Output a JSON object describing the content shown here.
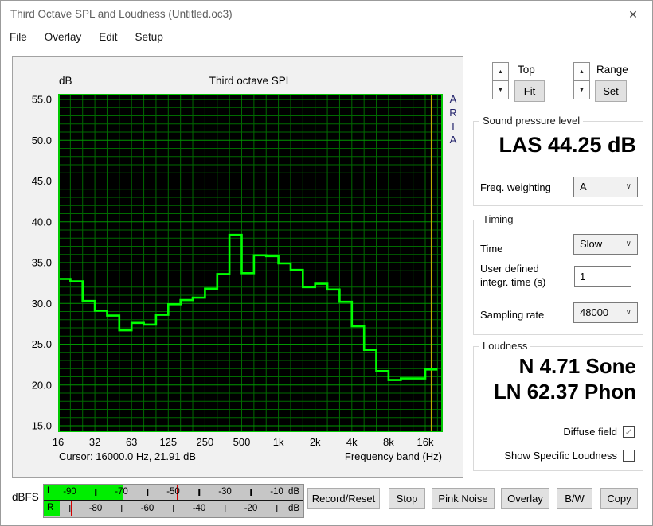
{
  "window": {
    "title": "Third Octave SPL and Loudness (Untitled.oc3)"
  },
  "icons": {
    "close": "✕",
    "spin_up": "▲",
    "spin_down": "▼",
    "chevron_down": "∨",
    "check": "✓"
  },
  "menu": [
    "File",
    "Overlay",
    "Edit",
    "Setup"
  ],
  "scale_controls": {
    "top_label": "Top",
    "fit_button": "Fit",
    "range_label": "Range",
    "set_button": "Set"
  },
  "chart": {
    "unit_label": "dB",
    "title": "Third octave SPL",
    "watermark": "ARTA",
    "cursor_status": "Cursor: 16000.0 Hz, 21.91 dB",
    "xlabel": "Frequency band (Hz)"
  },
  "chart_data": {
    "type": "step-line",
    "title": "Third octave SPL",
    "ylabel": "dB",
    "xlabel": "Frequency band (Hz)",
    "ylim": [
      15,
      55
    ],
    "grid": true,
    "y_tick_labels": [
      "55.0",
      "50.0",
      "45.0",
      "40.0",
      "35.0",
      "30.0",
      "25.0",
      "20.0",
      "15.0"
    ],
    "x_tick_labels": [
      "16",
      "32",
      "63",
      "125",
      "250",
      "500",
      "1k",
      "2k",
      "4k",
      "8k",
      "16k"
    ],
    "categories": [
      "16",
      "20",
      "25",
      "31.5",
      "40",
      "50",
      "63",
      "80",
      "100",
      "125",
      "160",
      "200",
      "250",
      "315",
      "400",
      "500",
      "630",
      "800",
      "1000",
      "1250",
      "1600",
      "2000",
      "2500",
      "3150",
      "4000",
      "5000",
      "6300",
      "8000",
      "10000",
      "12500",
      "16000"
    ],
    "values": [
      33.0,
      32.7,
      30.3,
      29.1,
      28.5,
      26.7,
      27.6,
      27.4,
      28.6,
      29.9,
      30.4,
      30.7,
      31.8,
      33.6,
      38.4,
      33.7,
      35.9,
      35.8,
      34.9,
      34.1,
      32.0,
      32.4,
      31.7,
      30.2,
      27.2,
      24.3,
      21.7,
      20.6,
      20.8,
      20.8,
      21.9
    ],
    "cursor": {
      "freq_hz": 16000.0,
      "level_db": 21.91,
      "band_index": 30
    },
    "colors": {
      "background": "#000000",
      "grid_minor": "#006a00",
      "grid_major": "#009600",
      "border": "#00c800",
      "line": "#00ff00",
      "cursor_line": "#c0ae00"
    }
  },
  "spl_group": {
    "title": "Sound pressure level",
    "value": "LAS 44.25 dB",
    "freq_weighting_label": "Freq. weighting",
    "freq_weighting_value": "A"
  },
  "timing_group": {
    "title": "Timing",
    "time_label": "Time",
    "time_value": "Slow",
    "integr_label": "User defined\nintegr. time (s)",
    "integr_value": "1",
    "sampling_label": "Sampling rate",
    "sampling_value": "48000"
  },
  "loudness_group": {
    "title": "Loudness",
    "sone_value": "N 4.71 Sone",
    "phon_value": "LN 62.37 Phon",
    "diffuse_field_label": "Diffuse field",
    "diffuse_field_checked": true,
    "show_specific_label": "Show Specific Loudness",
    "show_specific_checked": false
  },
  "meter": {
    "label": "dBFS",
    "unit": "dB",
    "scale": {
      "min_db": -100,
      "max_db": 0
    },
    "rows": [
      {
        "channel": "L",
        "level_db": -69.5,
        "peak_db": -48.5,
        "number_labels": [
          -90,
          -70,
          -50,
          -30,
          -10
        ],
        "tick_marks": [
          -80,
          -60,
          -40,
          -20
        ]
      },
      {
        "channel": "R",
        "level_db": -94.0,
        "peak_db": -89.5,
        "number_labels": [
          -80,
          -60,
          -40,
          -20
        ],
        "tick_marks": [
          -90,
          -70,
          -50,
          -30,
          -10
        ]
      }
    ],
    "colors": {
      "bar": "#00ee00",
      "peak": "#d40000",
      "background": "#c6c6c6"
    }
  },
  "action_buttons": [
    "Record/Reset",
    "Stop",
    "Pink Noise",
    "Overlay",
    "B/W",
    "Copy"
  ]
}
